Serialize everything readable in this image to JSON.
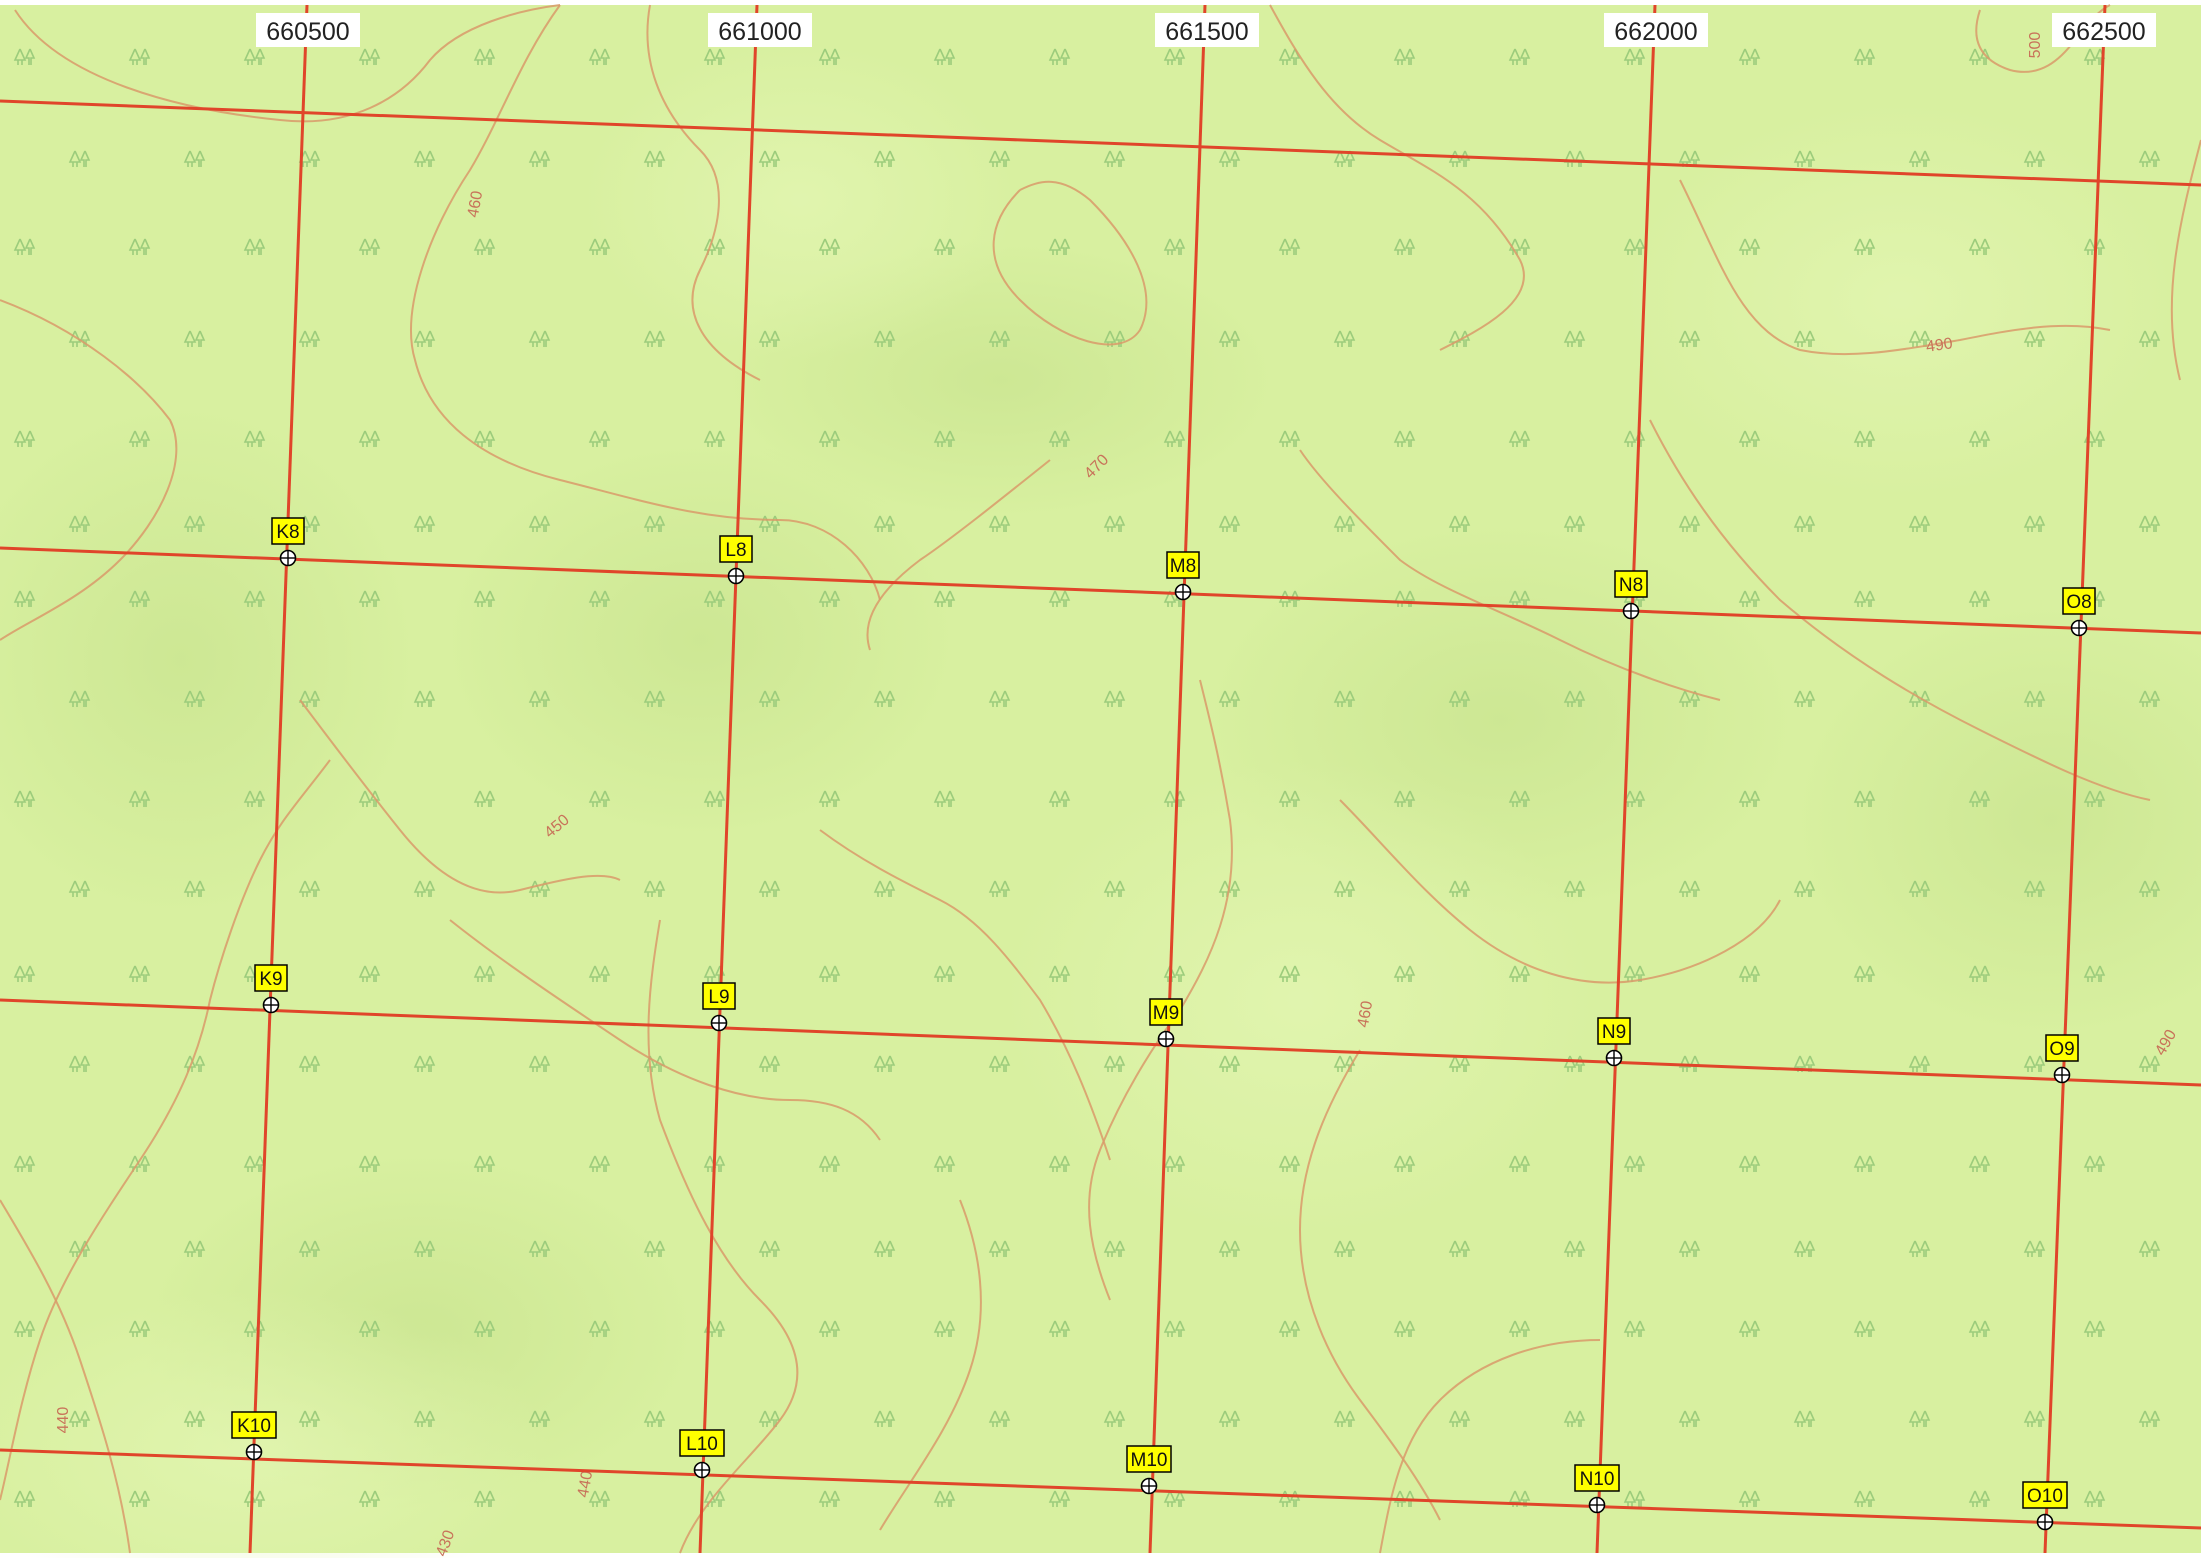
{
  "map": {
    "eastings": [
      "660500",
      "661000",
      "661500",
      "662000",
      "662500"
    ],
    "grid_cols": [
      "K",
      "L",
      "M",
      "N",
      "O"
    ],
    "grid_rows": [
      "8",
      "9",
      "10"
    ],
    "contour_labels": [
      "460",
      "470",
      "450",
      "490",
      "500",
      "460",
      "490",
      "440",
      "440",
      "430"
    ],
    "colors": {
      "terrain": "#d8f0a0",
      "terrain_dark": "#c8e690",
      "grid_line": "#e0452a",
      "contour": "#d99a6a",
      "marker_fill": "#ffff00",
      "marker_border": "#000000",
      "label_bg": "#ffffff"
    },
    "symbol_icon": "woodland-tree-icon",
    "marker_icon": "crosshair-circle-icon"
  }
}
